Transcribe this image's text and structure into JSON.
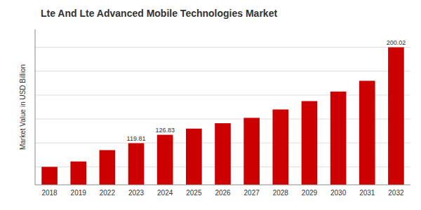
{
  "chart_data": {
    "type": "bar",
    "title": "Lte And Lte Advanced Mobile Technologies Market",
    "ylabel": "Market Value in USD Billion",
    "categories": [
      "2018",
      "2019",
      "2022",
      "2023",
      "2024",
      "2025",
      "2026",
      "2027",
      "2028",
      "2029",
      "2030",
      "2031",
      "2032"
    ],
    "values": [
      100.0,
      104.5,
      114.0,
      119.81,
      126.83,
      132.0,
      136.5,
      141.0,
      148.0,
      155.0,
      163.0,
      172.0,
      200.02
    ],
    "value_labels": [
      null,
      null,
      null,
      "119.81",
      "126.83",
      null,
      null,
      null,
      null,
      null,
      null,
      null,
      "200.02"
    ],
    "color": "#cc0000",
    "ylim": [
      85,
      215
    ],
    "yticks": [
      100,
      120,
      140,
      160,
      180,
      200
    ],
    "grid": true,
    "tick_labels": "x"
  }
}
